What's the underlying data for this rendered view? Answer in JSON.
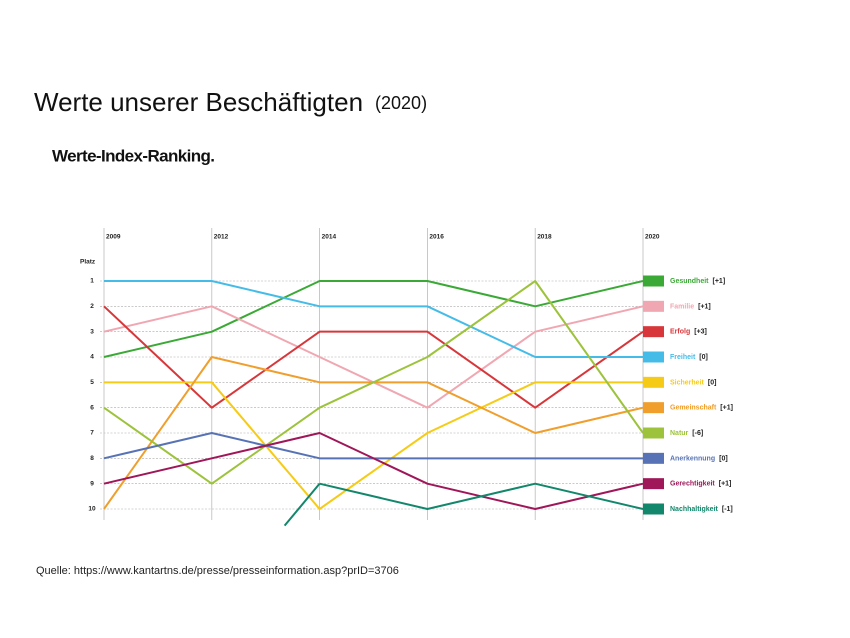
{
  "title": "Werte unserer Beschäftigten",
  "title_note": "(2020)",
  "source": "Quelle: https://www.kantartns.de/presse/presseinformation.asp?prID=3706",
  "chart_data": {
    "type": "line",
    "title": "Werte-Index-Ranking.",
    "y_label": "Platz",
    "categories": [
      "2009",
      "2012",
      "2014",
      "2016",
      "2018",
      "2020"
    ],
    "ylim": [
      1,
      10
    ],
    "y_inverted": true,
    "yticks": [
      1,
      2,
      3,
      4,
      5,
      6,
      7,
      8,
      9,
      10
    ],
    "grid": true,
    "series": [
      {
        "name": "Gesundheit",
        "change": "[+1]",
        "color": "#3aa935",
        "values": [
          4,
          3,
          1,
          1,
          2,
          1
        ]
      },
      {
        "name": "Familie",
        "change": "[+1]",
        "color": "#f0a7b1",
        "values": [
          3,
          2,
          4,
          6,
          3,
          2
        ]
      },
      {
        "name": "Erfolg",
        "change": "[+3]",
        "color": "#d7373a",
        "values": [
          2,
          6,
          3,
          3,
          6,
          3
        ]
      },
      {
        "name": "Freiheit",
        "change": "[0]",
        "color": "#45bce8",
        "values": [
          1,
          1,
          2,
          2,
          4,
          4
        ]
      },
      {
        "name": "Sicherheit",
        "change": "[0]",
        "color": "#f6cb17",
        "values": [
          5,
          5,
          10,
          7,
          5,
          5
        ]
      },
      {
        "name": "Gemeinschaft",
        "change": "[+1]",
        "color": "#f09e2c",
        "values": [
          10,
          4,
          5,
          5,
          7,
          6
        ]
      },
      {
        "name": "Natur",
        "change": "[-6]",
        "color": "#9cc33b",
        "values": [
          6,
          9,
          6,
          4,
          1,
          7
        ]
      },
      {
        "name": "Anerkennung",
        "change": "[0]",
        "color": "#5873b5",
        "values": [
          8,
          7,
          8,
          8,
          8,
          8
        ]
      },
      {
        "name": "Gerechtigkeit",
        "change": "[+1]",
        "color": "#9f1759",
        "values": [
          9,
          8,
          7,
          9,
          10,
          9
        ]
      },
      {
        "name": "Nachhaltigkeit",
        "change": "[-1]",
        "color": "#12876b",
        "values": [
          null,
          null,
          9,
          10,
          9,
          10
        ]
      }
    ]
  }
}
